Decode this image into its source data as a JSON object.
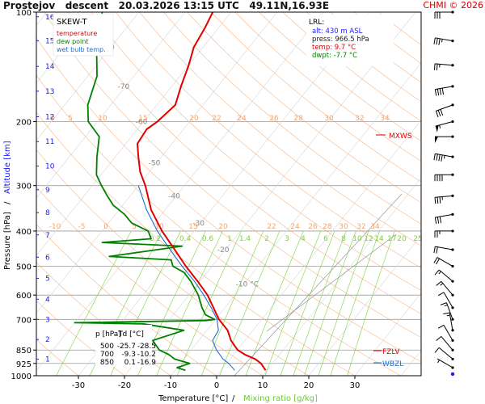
{
  "header": {
    "title": "Prostejov   descent   20.03.2026 13:15 UTC   49.11N,16.93E",
    "copyright": "CHMI © 2026"
  },
  "legend": {
    "title": "SKEW-T",
    "items": [
      {
        "label": "temperature",
        "color": "#e00000"
      },
      {
        "label": "dew point",
        "color": "#008000"
      },
      {
        "label": "wet bulb temp.",
        "color": "#1e6fd0"
      }
    ]
  },
  "lrl_box": {
    "title": "LRL:",
    "lines": [
      {
        "text": "alt: 430 m ASL",
        "color": "#1a1aff"
      },
      {
        "text": "press: 966.5 hPa",
        "color": "#222222"
      },
      {
        "text": "temp: 9.7 °C",
        "color": "#e00000"
      },
      {
        "text": "dwpt: -7.7 °C",
        "color": "#008000"
      }
    ]
  },
  "levels_table": {
    "headers": [
      "p [hPa]",
      "T",
      "Td [°C]"
    ],
    "rows": [
      [
        "500",
        "-25.7",
        "-28.5"
      ],
      [
        "700",
        "-9.3",
        "-10.2"
      ],
      [
        "850",
        "0.1",
        "-16.9"
      ]
    ]
  },
  "markers": {
    "mxws": "MXWS",
    "fzlv": "FZLV",
    "wbzl": "WBZL"
  },
  "axes": {
    "xlabel": "Temperature [°C]",
    "xlabel_sep": "/",
    "xlabel2": "Mixing ratio [g/kg]",
    "ylabel": "Pressure [hPa]",
    "ylabel_sep": "/",
    "ylabel2": "Altitude [km]"
  },
  "colors": {
    "temperature": "#e00000",
    "dewpoint": "#008000",
    "wetbulb": "#1e6fd0",
    "mixing": "#7fd13b",
    "dry_adiabat": "#f5a46a",
    "isotherm_label": "#888888",
    "altitude": "#1a1aff",
    "wind": "#000000"
  },
  "chart_data": {
    "type": "skew-t",
    "xlim": [
      -35,
      40
    ],
    "ylim": [
      1000,
      100
    ],
    "x_ticks": [
      -30,
      -20,
      -10,
      0,
      10,
      20,
      30
    ],
    "pressure_ticks": [
      1000,
      925,
      850,
      700,
      600,
      500,
      400,
      300,
      200,
      100
    ],
    "altitude_ticks": [
      1,
      2,
      3,
      4,
      5,
      6,
      7,
      8,
      9,
      10,
      11,
      12,
      13,
      14,
      15,
      16
    ],
    "isotherm_labels": [
      -80,
      -70,
      -60,
      -50,
      -40,
      -30,
      -20,
      "-10 °C"
    ],
    "dry_adiabat_labels_200": [
      0,
      5,
      10,
      15,
      20,
      22,
      24,
      26,
      28,
      30,
      32,
      34
    ],
    "dry_adiabat_labels_400": [
      -10,
      -5,
      0,
      5,
      10,
      15,
      20,
      22,
      24,
      26,
      28,
      30,
      32,
      34
    ],
    "mixing_ratio_labels": [
      0.2,
      0.4,
      0.6,
      1,
      1.4,
      2,
      3,
      4,
      6,
      8,
      10,
      12,
      14,
      17,
      20,
      25
    ],
    "temperature": [
      [
        966.5,
        9.7
      ],
      [
        925,
        7.5
      ],
      [
        900,
        5.5
      ],
      [
        875,
        2.5
      ],
      [
        850,
        0.1
      ],
      [
        800,
        -3
      ],
      [
        750,
        -5.5
      ],
      [
        700,
        -9.3
      ],
      [
        650,
        -12.5
      ],
      [
        600,
        -16
      ],
      [
        550,
        -20.5
      ],
      [
        500,
        -25.7
      ],
      [
        450,
        -31
      ],
      [
        400,
        -37
      ],
      [
        350,
        -43
      ],
      [
        300,
        -48.5
      ],
      [
        275,
        -52
      ],
      [
        250,
        -55
      ],
      [
        230,
        -57.5
      ],
      [
        210,
        -58
      ],
      [
        200,
        -57
      ],
      [
        180,
        -56
      ],
      [
        160,
        -58
      ],
      [
        140,
        -60
      ],
      [
        125,
        -62
      ],
      [
        110,
        -63
      ],
      [
        100,
        -64
      ]
    ],
    "dewpoint": [
      [
        966.5,
        -7.7
      ],
      [
        950,
        -10
      ],
      [
        925,
        -8
      ],
      [
        900,
        -12
      ],
      [
        875,
        -14
      ],
      [
        850,
        -16.9
      ],
      [
        800,
        -20
      ],
      [
        750,
        -15
      ],
      [
        720,
        -25
      ],
      [
        715,
        -40
      ],
      [
        705,
        -12
      ],
      [
        700,
        -10.2
      ],
      [
        680,
        -13
      ],
      [
        650,
        -15
      ],
      [
        600,
        -18
      ],
      [
        550,
        -22
      ],
      [
        520,
        -25
      ],
      [
        500,
        -28.5
      ],
      [
        480,
        -30
      ],
      [
        470,
        -44
      ],
      [
        440,
        -30
      ],
      [
        430,
        -48
      ],
      [
        420,
        -38
      ],
      [
        400,
        -40
      ],
      [
        380,
        -45
      ],
      [
        360,
        -48
      ],
      [
        340,
        -52
      ],
      [
        320,
        -55
      ],
      [
        300,
        -58
      ],
      [
        280,
        -61
      ],
      [
        250,
        -64
      ],
      [
        220,
        -67
      ],
      [
        200,
        -72
      ],
      [
        180,
        -75
      ],
      [
        150,
        -78
      ],
      [
        130,
        -82
      ],
      [
        100,
        -88
      ]
    ],
    "wetbulb": [
      [
        966.5,
        3
      ],
      [
        925,
        0.5
      ],
      [
        900,
        -1.5
      ],
      [
        850,
        -4.5
      ],
      [
        800,
        -7
      ],
      [
        750,
        -7.5
      ],
      [
        700,
        -9.7
      ],
      [
        650,
        -13
      ],
      [
        600,
        -16.8
      ],
      [
        550,
        -21.2
      ],
      [
        500,
        -26.5
      ],
      [
        450,
        -32
      ],
      [
        400,
        -38
      ],
      [
        350,
        -44
      ],
      [
        300,
        -50
      ]
    ],
    "wind_barbs": [
      {
        "p": 100,
        "dir": 270,
        "speed": 30
      },
      {
        "p": 120,
        "dir": 280,
        "speed": 35
      },
      {
        "p": 140,
        "dir": 275,
        "speed": 25
      },
      {
        "p": 160,
        "dir": 260,
        "speed": 40
      },
      {
        "p": 180,
        "dir": 250,
        "speed": 30
      },
      {
        "p": 200,
        "dir": 255,
        "speed": 55
      },
      {
        "p": 220,
        "dir": 270,
        "speed": 50
      },
      {
        "p": 250,
        "dir": 280,
        "speed": 45
      },
      {
        "p": 280,
        "dir": 270,
        "speed": 40
      },
      {
        "p": 320,
        "dir": 265,
        "speed": 35
      },
      {
        "p": 360,
        "dir": 260,
        "speed": 30
      },
      {
        "p": 400,
        "dir": 270,
        "speed": 25
      },
      {
        "p": 450,
        "dir": 280,
        "speed": 20
      },
      {
        "p": 500,
        "dir": 300,
        "speed": 20
      },
      {
        "p": 550,
        "dir": 310,
        "speed": 15
      },
      {
        "p": 600,
        "dir": 320,
        "speed": 15
      },
      {
        "p": 650,
        "dir": 330,
        "speed": 10
      },
      {
        "p": 700,
        "dir": 340,
        "speed": 15
      },
      {
        "p": 750,
        "dir": 350,
        "speed": 15
      },
      {
        "p": 800,
        "dir": 330,
        "speed": 10
      },
      {
        "p": 850,
        "dir": 320,
        "speed": 10
      },
      {
        "p": 900,
        "dir": 310,
        "speed": 10
      },
      {
        "p": 950,
        "dir": 300,
        "speed": 5
      }
    ]
  }
}
